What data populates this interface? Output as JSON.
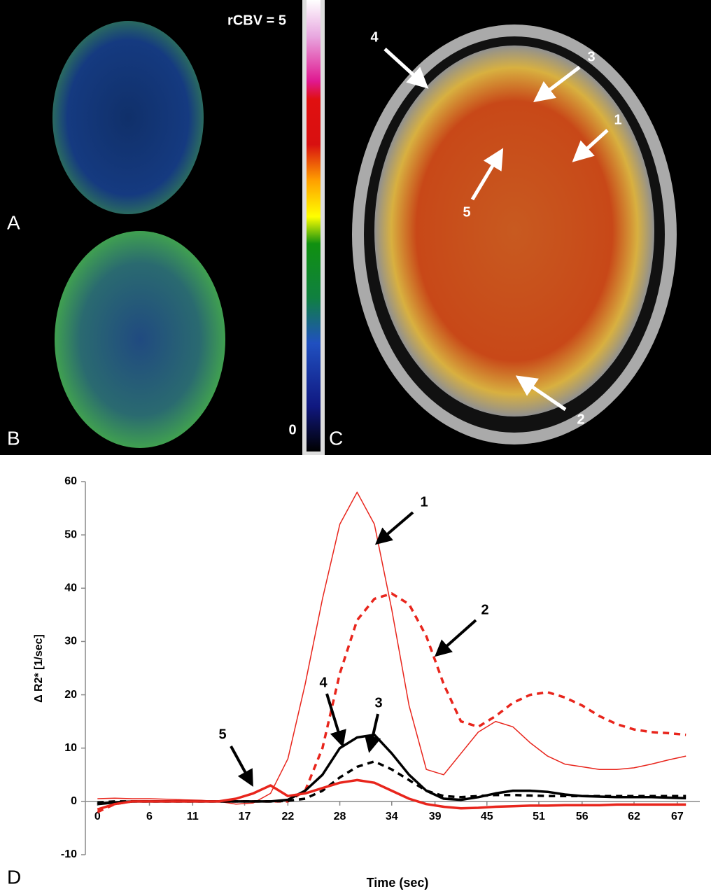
{
  "figure": {
    "panel_labels": [
      "A",
      "B",
      "C",
      "D"
    ],
    "colorbar": {
      "max_label": "rCBV = 5",
      "min_label": "0"
    },
    "image_arrows": [
      "4",
      "3",
      "1",
      "5",
      "2"
    ]
  },
  "chart_data": {
    "type": "line",
    "ylabel": "Δ R2* [1/sec]",
    "xlabel": "Time (sec)",
    "x": [
      0,
      2,
      4,
      6,
      8,
      10,
      12,
      14,
      16,
      18,
      20,
      22,
      24,
      26,
      28,
      30,
      32,
      34,
      36,
      38,
      40,
      42,
      44,
      46,
      48,
      50,
      52,
      54,
      56,
      58,
      60,
      62,
      64,
      66,
      68
    ],
    "xlim": [
      -1.4,
      69.6
    ],
    "xticks": [
      0,
      6,
      11,
      17,
      22,
      28,
      34,
      39,
      45,
      51,
      56,
      62,
      67
    ],
    "ylim": [
      -10,
      60
    ],
    "yticks": [
      -10,
      0,
      10,
      20,
      30,
      40,
      50,
      60
    ],
    "series": [
      {
        "name": "1",
        "color": "#e8251c",
        "style": "solid",
        "weight": "thin",
        "values": [
          0.5,
          0.6,
          0.5,
          0.5,
          0.4,
          0.3,
          0.2,
          0,
          -0.5,
          -0.3,
          1.5,
          8,
          22,
          38,
          52,
          58,
          52,
          36,
          18,
          6,
          5,
          9,
          13,
          15,
          14,
          11,
          8.5,
          7,
          6.5,
          6,
          6,
          6.3,
          7,
          7.8,
          8.5
        ]
      },
      {
        "name": "2",
        "color": "#e8251c",
        "style": "dashed",
        "weight": "thick",
        "values": [
          -2,
          -0.5,
          0,
          0,
          0,
          0,
          0,
          0,
          0,
          0,
          0,
          0,
          2,
          10,
          24,
          34,
          38,
          39,
          37,
          31,
          22,
          15,
          14,
          16,
          18.5,
          20,
          20.5,
          19.5,
          18,
          16,
          14.5,
          13.5,
          13,
          12.8,
          12.5
        ]
      },
      {
        "name": "3",
        "color": "#000000",
        "style": "dashed",
        "weight": "thick",
        "values": [
          -0.2,
          0,
          0,
          0,
          0,
          0,
          0,
          0,
          0,
          0,
          0,
          0.1,
          0.5,
          2,
          4.5,
          6.5,
          7.5,
          6,
          4,
          2,
          1,
          0.8,
          1,
          1.2,
          1.2,
          1.1,
          1,
          1,
          1,
          1,
          1,
          1,
          1,
          1,
          1
        ]
      },
      {
        "name": "4",
        "color": "#000000",
        "style": "solid",
        "weight": "thick",
        "values": [
          -0.5,
          -0.2,
          0,
          0,
          0,
          0,
          0,
          0,
          0,
          0,
          0,
          0.3,
          2,
          5,
          10,
          12,
          12.5,
          9,
          5,
          2,
          0.5,
          0.3,
          0.8,
          1.5,
          2,
          2,
          1.8,
          1.3,
          1,
          0.9,
          0.8,
          0.8,
          0.8,
          0.7,
          0.6
        ]
      },
      {
        "name": "5",
        "color": "#e8251c",
        "style": "solid",
        "weight": "thick",
        "values": [
          -1.5,
          -0.5,
          0,
          0,
          0,
          0,
          0,
          0,
          0.5,
          1.5,
          3,
          1,
          1.5,
          2.5,
          3.5,
          4,
          3.5,
          2,
          0.5,
          -0.5,
          -1,
          -1.3,
          -1.2,
          -1,
          -0.9,
          -0.8,
          -0.8,
          -0.7,
          -0.7,
          -0.7,
          -0.6,
          -0.6,
          -0.6,
          -0.6,
          -0.6
        ]
      }
    ]
  }
}
